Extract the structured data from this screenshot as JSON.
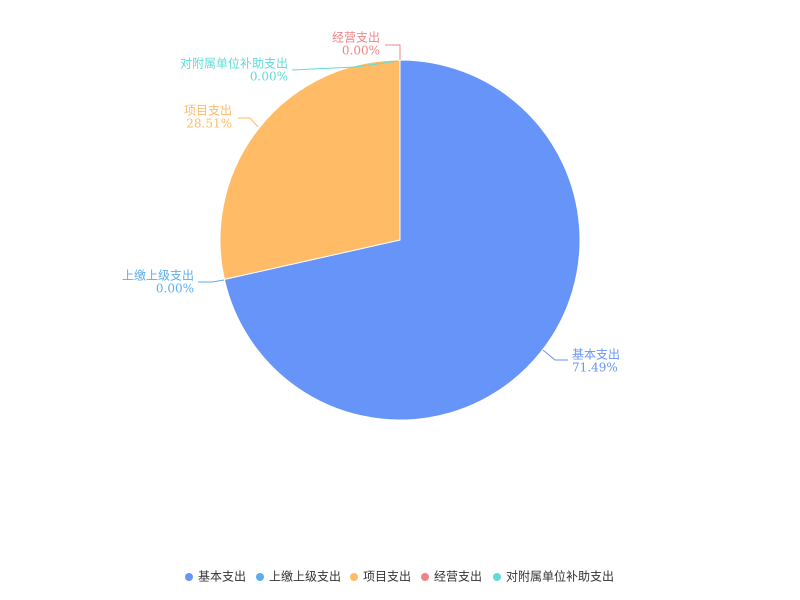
{
  "chart_data": {
    "type": "pie",
    "categories": [
      "基本支出",
      "上缴上级支出",
      "项目支出",
      "经营支出",
      "对附属单位补助支出"
    ],
    "values": [
      71.49,
      0.0,
      28.51,
      0.0,
      0.0
    ],
    "value_labels": [
      "71.49%",
      "0.00%",
      "28.51%",
      "0.00%",
      "0.00%"
    ],
    "colors": [
      "#6794f8",
      "#5aaef0",
      "#ffbb66",
      "#f08484",
      "#5fdcd8"
    ],
    "legend": "bottom"
  }
}
